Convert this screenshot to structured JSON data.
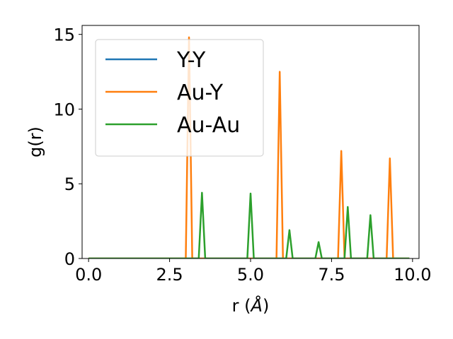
{
  "chart_data": {
    "type": "line",
    "xlabel_main": "r (",
    "xlabel_unit": "Å",
    "xlabel_close": ")",
    "ylabel": "g(r)",
    "xlim": [
      -0.2,
      10.2
    ],
    "ylim": [
      0,
      15.6
    ],
    "x_ticks": [
      0.0,
      2.5,
      5.0,
      7.5,
      10.0
    ],
    "x_tick_labels": [
      "0.0",
      "2.5",
      "5.0",
      "7.5",
      "10.0"
    ],
    "y_ticks": [
      0,
      5,
      10,
      15
    ],
    "y_tick_labels": [
      "0",
      "5",
      "10",
      "15"
    ],
    "grid": false,
    "legend_position": "upper-left",
    "series": [
      {
        "name": "Y-Y",
        "color": "#1f77b4",
        "x": [
          0.0,
          9.9
        ],
        "y": [
          0,
          0
        ]
      },
      {
        "name": "Au-Y",
        "color": "#ff7f0e",
        "x": [
          0.0,
          3.0,
          3.1,
          3.2,
          5.8,
          5.9,
          6.0,
          7.7,
          7.8,
          7.9,
          9.2,
          9.3,
          9.4,
          9.9
        ],
        "y": [
          0,
          0,
          14.8,
          0,
          0,
          12.5,
          0,
          0,
          7.2,
          0,
          0,
          6.7,
          0,
          0
        ]
      },
      {
        "name": "Au-Au",
        "color": "#2ca02c",
        "x": [
          0.0,
          3.4,
          3.5,
          3.6,
          4.9,
          5.0,
          5.1,
          6.1,
          6.2,
          6.3,
          7.0,
          7.1,
          7.2,
          7.9,
          8.0,
          8.1,
          8.6,
          8.7,
          8.8,
          9.9
        ],
        "y": [
          0,
          0,
          4.4,
          0,
          0,
          4.35,
          0,
          0,
          1.9,
          0,
          0,
          1.1,
          0,
          0,
          3.45,
          0,
          0,
          2.9,
          0,
          0
        ]
      }
    ]
  }
}
